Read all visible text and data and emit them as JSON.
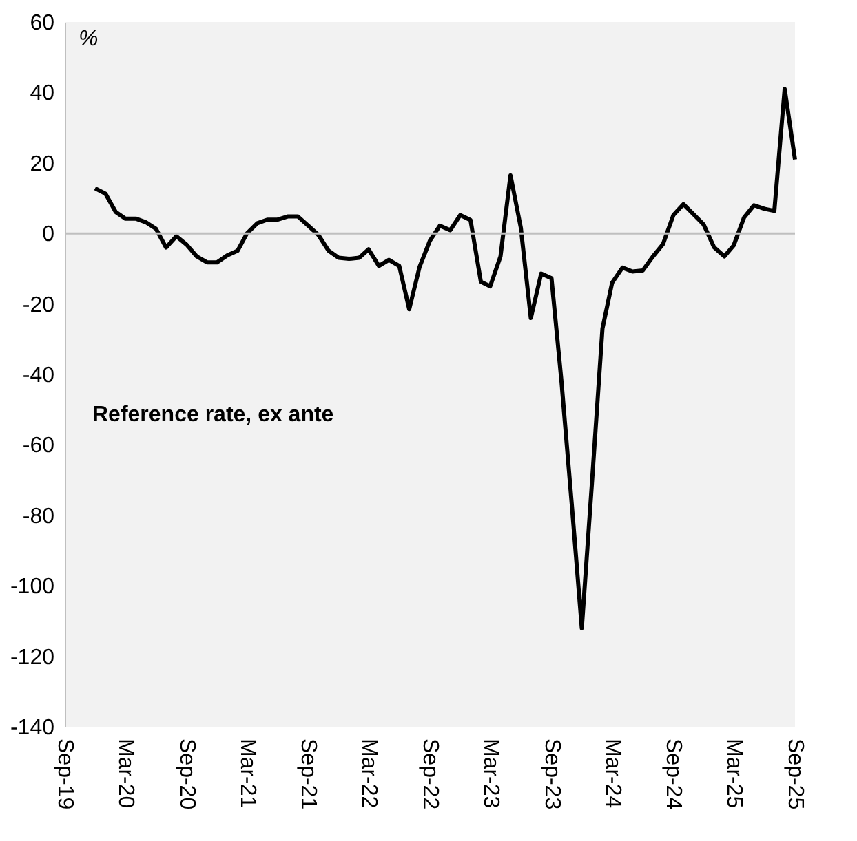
{
  "chart_data": {
    "type": "line",
    "ylabel": "%",
    "series": [
      {
        "name": "Reference rate, ex ante",
        "color": "#000000",
        "x": [
          "2019-12",
          "2020-01",
          "2020-02",
          "2020-03",
          "2020-04",
          "2020-05",
          "2020-06",
          "2020-07",
          "2020-08",
          "2020-09",
          "2020-10",
          "2020-11",
          "2020-12",
          "2021-01",
          "2021-02",
          "2021-03",
          "2021-04",
          "2021-05",
          "2021-06",
          "2021-07",
          "2021-08",
          "2021-09",
          "2021-10",
          "2021-11",
          "2021-12",
          "2022-01",
          "2022-02",
          "2022-03",
          "2022-04",
          "2022-05",
          "2022-06",
          "2022-07",
          "2022-08",
          "2022-09",
          "2022-10",
          "2022-11",
          "2022-12",
          "2023-01",
          "2023-02",
          "2023-03",
          "2023-04",
          "2023-05",
          "2023-06",
          "2023-07",
          "2023-08",
          "2023-09",
          "2023-10",
          "2023-11",
          "2023-12",
          "2024-01",
          "2024-02",
          "2024-03",
          "2024-04",
          "2024-05",
          "2024-06",
          "2024-07",
          "2024-08",
          "2024-09",
          "2024-10",
          "2024-11",
          "2024-12",
          "2025-01",
          "2025-02",
          "2025-03",
          "2025-04",
          "2025-05",
          "2025-06",
          "2025-07",
          "2025-08",
          "2025-09"
        ],
        "values": [
          12.8,
          11.3,
          6.1,
          4.2,
          4.2,
          3.2,
          1.3,
          -4,
          -0.8,
          -3.2,
          -6.5,
          -8.2,
          -8.2,
          -6.2,
          -4.9,
          0,
          2.9,
          3.9,
          3.9,
          4.8,
          4.8,
          2.2,
          -0.4,
          -4.9,
          -6.9,
          -7.2,
          -6.9,
          -4.5,
          -9.2,
          -7.5,
          -9.2,
          -21.5,
          -9.5,
          -2.1,
          2.2,
          0.9,
          5.2,
          3.8,
          -13.7,
          -15,
          -6.5,
          16.5,
          1.6,
          -24,
          -11.4,
          -12.7,
          -42,
          -77,
          -112,
          -70,
          -27,
          -14,
          -9.7,
          -10.8,
          -10.5,
          -6.6,
          -3,
          5.2,
          8.3,
          5.4,
          2.5,
          -3.9,
          -6.5,
          -3.4,
          4.5,
          8,
          7,
          6.4,
          41,
          21
        ]
      }
    ],
    "xlim": [
      "2019-09",
      "2025-09"
    ],
    "xticks": [
      {
        "value": "2019-09",
        "label": "Sep-19"
      },
      {
        "value": "2020-03",
        "label": "Mar-20"
      },
      {
        "value": "2020-09",
        "label": "Sep-20"
      },
      {
        "value": "2021-03",
        "label": "Mar-21"
      },
      {
        "value": "2021-09",
        "label": "Sep-21"
      },
      {
        "value": "2022-03",
        "label": "Mar-22"
      },
      {
        "value": "2022-09",
        "label": "Sep-22"
      },
      {
        "value": "2023-03",
        "label": "Mar-23"
      },
      {
        "value": "2023-09",
        "label": "Sep-23"
      },
      {
        "value": "2024-03",
        "label": "Mar-24"
      },
      {
        "value": "2024-09",
        "label": "Sep-24"
      },
      {
        "value": "2025-03",
        "label": "Mar-25"
      },
      {
        "value": "2025-09",
        "label": "Sep-25"
      }
    ],
    "ylim": [
      -140,
      60
    ],
    "yticks": [
      -140,
      -120,
      -100,
      -80,
      -60,
      -40,
      -20,
      0,
      20,
      40,
      60
    ],
    "ref_lines": [
      {
        "axis": "y",
        "value": 0,
        "color": "#bfbfbf"
      }
    ],
    "grid": false,
    "marker": "none",
    "line_style": "solid"
  }
}
